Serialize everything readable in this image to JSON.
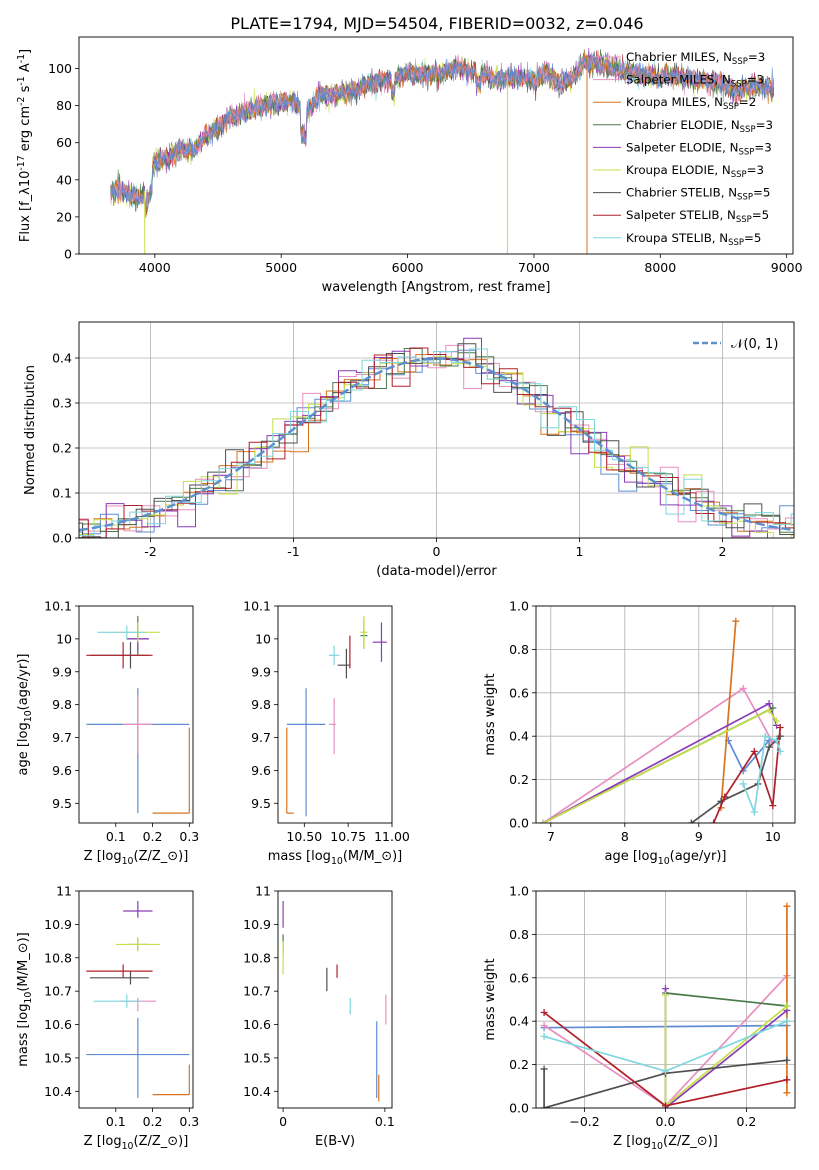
{
  "figure_title": "PLATE=1794, MJD=54504, FIBERID=0032, z=0.046",
  "colors": {
    "cM": "#5f8dd3",
    "sM": "#e88fc0",
    "kM": "#d9731f",
    "cE": "#4a7a4a",
    "sE": "#8a3db5",
    "kE": "#c5e04a",
    "cS": "#4f4f4f",
    "sS": "#b0202a",
    "kS": "#7fd6e0"
  },
  "chart_data": [
    {
      "id": "spectrum",
      "type": "line",
      "xlabel": "wavelength [Angstrom, rest frame]",
      "ylabel": "Flux [f$_\\lambda$10$^{-17}$ erg cm$^{-2}$ s$^{-1}$ A$^{-1}$]",
      "xlim": [
        3400,
        9050
      ],
      "ylim": [
        0,
        117
      ],
      "xticks": [
        4000,
        5000,
        6000,
        7000,
        8000,
        9000
      ],
      "yticks": [
        0,
        20,
        40,
        60,
        80,
        100
      ],
      "legend_position": "upper-right",
      "series": [
        {
          "name": "Chabrier MILES, N",
          "sub": "SSP",
          "suffix": "=3",
          "color": "sM"
        },
        {
          "name": "Salpeter MILES, N",
          "sub": "SSP",
          "suffix": "=3",
          "color": "sM"
        },
        {
          "name": "Kroupa MILES, N",
          "sub": "SSP",
          "suffix": "=2",
          "color": "kM"
        },
        {
          "name": "Chabrier ELODIE, N",
          "sub": "SSP",
          "suffix": "=3",
          "color": "cE"
        },
        {
          "name": "Salpeter ELODIE, N",
          "sub": "SSP",
          "suffix": "=3",
          "color": "sE"
        },
        {
          "name": "Kroupa ELODIE, N",
          "sub": "SSP",
          "suffix": "=3",
          "color": "kE"
        },
        {
          "name": "Chabrier STELIB, N",
          "sub": "SSP",
          "suffix": "=5",
          "color": "cS"
        },
        {
          "name": "Salpeter STELIB, N",
          "sub": "SSP",
          "suffix": "=5",
          "color": "sS"
        },
        {
          "name": "Kroupa STELIB, N",
          "sub": "SSP",
          "suffix": "=5",
          "color": "kS"
        }
      ],
      "spectrum_anchor": {
        "x": [
          3650,
          3700,
          3800,
          3900,
          4000,
          4100,
          4200,
          4300,
          4400,
          4500,
          4600,
          4700,
          4800,
          4900,
          5000,
          5100,
          5200,
          5300,
          5400,
          5500,
          5600,
          5700,
          5800,
          5900,
          6000,
          6100,
          6200,
          6300,
          6400,
          6500,
          6600,
          6700,
          6800,
          6900,
          7000,
          7100,
          7200,
          7300,
          7400,
          7500,
          7600,
          7700,
          7800,
          7900,
          8000,
          8100,
          8200,
          8300,
          8400,
          8500,
          8600,
          8700,
          8800,
          8900
        ],
        "y": [
          33,
          35,
          32,
          30,
          50,
          52,
          57,
          55,
          63,
          68,
          74,
          76,
          79,
          81,
          82,
          82,
          74,
          86,
          85,
          87,
          88,
          92,
          93,
          95,
          98,
          97,
          97,
          98,
          101,
          98,
          98,
          94,
          95,
          95,
          93,
          98,
          92,
          94,
          104,
          103,
          101,
          99,
          98,
          96,
          95,
          96,
          95,
          93,
          93,
          91,
          88,
          90,
          90,
          89
        ]
      },
      "drops": [
        {
          "x": 3920,
          "color": "kE"
        },
        {
          "x": 6790,
          "color": "kE"
        },
        {
          "x": 7420,
          "color": "kM"
        }
      ]
    },
    {
      "id": "residual_hist",
      "type": "histogram",
      "xlabel": "(data-model)/error",
      "ylabel": "Normed distribution",
      "xlim": [
        -2.5,
        2.5
      ],
      "ylim": [
        0,
        0.48
      ],
      "xticks": [
        -2,
        -1,
        0,
        1,
        2
      ],
      "yticks": [
        0.0,
        0.1,
        0.2,
        0.3,
        0.4
      ],
      "grid": true,
      "legend": "𝒩(0, 1)",
      "legend_position": "upper-right",
      "overlay": "normal(0,1) dashed"
    },
    {
      "id": "age_vs_Z",
      "type": "scatter-errorbar",
      "xlabel": "Z [log$_{10}$($Z/Z_\\odot$)]",
      "ylabel": "age  [log$_{10}$($age/yr$)]",
      "xlim": [
        0.0,
        0.31
      ],
      "ylim": [
        9.44,
        10.1
      ],
      "xticks": [
        0.1,
        0.2,
        0.3
      ],
      "yticks": [
        9.5,
        9.6,
        9.7,
        9.8,
        9.9,
        10.0,
        10.1
      ],
      "points": [
        {
          "series": "cM",
          "x": 0.16,
          "y": 9.74,
          "xerr": [
            0.14,
            0.14
          ],
          "yerr": [
            0.27,
            0.11
          ]
        },
        {
          "series": "sM",
          "x": 0.16,
          "y": 9.74,
          "xerr": [
            0.04,
            0.04
          ],
          "yerr": [
            0.09,
            0.09
          ]
        },
        {
          "series": "kM",
          "x": 0.3,
          "y": 9.47,
          "xerr": [
            0.1,
            0.0
          ],
          "yerr": [
            0.0,
            0.26
          ]
        },
        {
          "series": "cE",
          "x": 0.16,
          "y": 10.0,
          "xerr": [
            0.03,
            0.03
          ],
          "yerr": [
            0.05,
            0.07
          ]
        },
        {
          "series": "sE",
          "x": 0.16,
          "y": 10.0,
          "xerr": [
            0.03,
            0.03
          ],
          "yerr": [
            0.04,
            0.05
          ]
        },
        {
          "series": "kE",
          "x": 0.16,
          "y": 10.02,
          "xerr": [
            0.06,
            0.06
          ],
          "yerr": [
            0.03,
            0.03
          ]
        },
        {
          "series": "cS",
          "x": 0.14,
          "y": 9.95,
          "xerr": [
            0.11,
            0.05
          ],
          "yerr": [
            0.04,
            0.04
          ]
        },
        {
          "series": "sS",
          "x": 0.12,
          "y": 9.95,
          "xerr": [
            0.1,
            0.08
          ],
          "yerr": [
            0.04,
            0.04
          ]
        },
        {
          "series": "kS",
          "x": 0.13,
          "y": 10.02,
          "xerr": [
            0.08,
            0.05
          ],
          "yerr": [
            0.02,
            0.02
          ]
        }
      ]
    },
    {
      "id": "age_vs_mass",
      "type": "scatter-errorbar",
      "xlabel": "mass [log$_{10}$($M/M_\\odot$)]",
      "ylabel": "",
      "xlim": [
        10.35,
        11.0
      ],
      "ylim": [
        9.44,
        10.1
      ],
      "xticks": [
        10.5,
        10.75,
        11.0
      ],
      "xticklabels": [
        "10.50",
        "10.75",
        "11.00"
      ],
      "yticks": [
        9.5,
        9.6,
        9.7,
        9.8,
        9.9,
        10.0,
        10.1
      ],
      "points": [
        {
          "series": "cM",
          "x": 10.51,
          "y": 9.74,
          "xerr": [
            0.11,
            0.11
          ],
          "yerr": [
            0.28,
            0.11
          ]
        },
        {
          "series": "sM",
          "x": 10.67,
          "y": 9.74,
          "xerr": [
            0.03,
            0.01
          ],
          "yerr": [
            0.09,
            0.08
          ]
        },
        {
          "series": "kM",
          "x": 10.4,
          "y": 9.47,
          "xerr": [
            0.0,
            0.04
          ],
          "yerr": [
            0.0,
            0.26
          ]
        },
        {
          "series": "cE",
          "x": 10.84,
          "y": 10.01,
          "xerr": [
            0.02,
            0.02
          ],
          "yerr": [
            0.04,
            0.05
          ]
        },
        {
          "series": "sE",
          "x": 10.94,
          "y": 9.99,
          "xerr": [
            0.05,
            0.03
          ],
          "yerr": [
            0.06,
            0.06
          ]
        },
        {
          "series": "kE",
          "x": 10.84,
          "y": 10.02,
          "xerr": [
            0.02,
            0.02
          ],
          "yerr": [
            0.05,
            0.05
          ]
        },
        {
          "series": "cS",
          "x": 10.74,
          "y": 9.92,
          "xerr": [
            0.05,
            0.02
          ],
          "yerr": [
            0.04,
            0.05
          ]
        },
        {
          "series": "sS",
          "x": 10.76,
          "y": 9.96,
          "xerr": [
            0.0,
            0.0
          ],
          "yerr": [
            0.05,
            0.05
          ]
        },
        {
          "series": "kS",
          "x": 10.67,
          "y": 9.95,
          "xerr": [
            0.03,
            0.03
          ],
          "yerr": [
            0.03,
            0.03
          ]
        }
      ]
    },
    {
      "id": "weight_vs_age",
      "type": "line",
      "xlabel": "age  [log$_{10}$($age/yr$)]",
      "ylabel": "mass weight",
      "xlim": [
        6.8,
        10.3
      ],
      "ylim": [
        0,
        1
      ],
      "xticks": [
        7,
        8,
        9,
        10
      ],
      "yticks": [
        0.0,
        0.2,
        0.4,
        0.6,
        0.8,
        1.0
      ],
      "grid": true,
      "series": [
        {
          "series": "cM",
          "x": [
            9.4,
            9.6,
            9.95
          ],
          "y": [
            0.38,
            0.24,
            0.38
          ]
        },
        {
          "series": "sM",
          "x": [
            6.9,
            9.6,
            10.0
          ],
          "y": [
            0.0,
            0.62,
            0.37
          ]
        },
        {
          "series": "kM",
          "x": [
            9.5,
            9.3
          ],
          "y": [
            0.93,
            0.07
          ]
        },
        {
          "series": "cE",
          "x": [
            6.9,
            10.0
          ],
          "y": [
            0.0,
            0.53
          ]
        },
        {
          "series": "sE",
          "x": [
            6.9,
            9.95,
            10.05
          ],
          "y": [
            0.0,
            0.55,
            0.45
          ]
        },
        {
          "series": "kE",
          "x": [
            6.9,
            9.95,
            10.05
          ],
          "y": [
            0.0,
            0.52,
            0.47
          ]
        },
        {
          "series": "cS",
          "x": [
            8.9,
            9.3,
            9.8,
            9.95,
            10.1
          ],
          "y": [
            0.0,
            0.1,
            0.18,
            0.35,
            0.4
          ]
        },
        {
          "series": "sS",
          "x": [
            9.2,
            9.35,
            9.75,
            10.0,
            10.1
          ],
          "y": [
            0.0,
            0.12,
            0.33,
            0.08,
            0.44
          ]
        },
        {
          "series": "kS",
          "x": [
            9.6,
            9.75,
            9.9,
            10.05,
            10.1
          ],
          "y": [
            0.18,
            0.05,
            0.4,
            0.38,
            0.33
          ]
        }
      ]
    },
    {
      "id": "mass_vs_Z",
      "type": "scatter-errorbar",
      "xlabel": "Z [log$_{10}$($Z/Z_\\odot$)]",
      "ylabel": "mass [log$_{10}$($M/M_\\odot$)]",
      "xlim": [
        0.0,
        0.31
      ],
      "ylim": [
        10.35,
        11.0
      ],
      "xticks": [
        0.1,
        0.2,
        0.3
      ],
      "yticks": [
        10.4,
        10.5,
        10.6,
        10.7,
        10.8,
        10.9,
        11.0
      ],
      "points": [
        {
          "series": "cM",
          "x": 0.16,
          "y": 10.51,
          "xerr": [
            0.14,
            0.14
          ],
          "yerr": [
            0.13,
            0.11
          ]
        },
        {
          "series": "sM",
          "x": 0.16,
          "y": 10.67,
          "xerr": [
            0.05,
            0.05
          ],
          "yerr": [
            0.03,
            0.01
          ]
        },
        {
          "series": "kM",
          "x": 0.3,
          "y": 10.39,
          "xerr": [
            0.1,
            0.0
          ],
          "yerr": [
            0.0,
            0.09
          ]
        },
        {
          "series": "cE",
          "x": 0.16,
          "y": 10.84,
          "xerr": [
            0.03,
            0.03
          ],
          "yerr": [
            0.02,
            0.02
          ]
        },
        {
          "series": "sE",
          "x": 0.16,
          "y": 10.94,
          "xerr": [
            0.04,
            0.04
          ],
          "yerr": [
            0.02,
            0.03
          ]
        },
        {
          "series": "kE",
          "x": 0.16,
          "y": 10.84,
          "xerr": [
            0.06,
            0.06
          ],
          "yerr": [
            0.02,
            0.02
          ]
        },
        {
          "series": "cS",
          "x": 0.14,
          "y": 10.74,
          "xerr": [
            0.11,
            0.05
          ],
          "yerr": [
            0.02,
            0.02
          ]
        },
        {
          "series": "sS",
          "x": 0.12,
          "y": 10.76,
          "xerr": [
            0.1,
            0.08
          ],
          "yerr": [
            0.02,
            0.02
          ]
        },
        {
          "series": "kS",
          "x": 0.13,
          "y": 10.67,
          "xerr": [
            0.09,
            0.04
          ],
          "yerr": [
            0.02,
            0.02
          ]
        }
      ]
    },
    {
      "id": "mass_vs_ebv",
      "type": "scatter-errorbar",
      "xlabel": "E(B-V)",
      "ylabel": "",
      "xlim": [
        -0.005,
        0.107
      ],
      "ylim": [
        10.35,
        11.0
      ],
      "xticks": [
        0.0,
        0.1
      ],
      "yticks": [
        10.4,
        10.5,
        10.6,
        10.7,
        10.8,
        10.9,
        11.0
      ],
      "points": [
        {
          "series": "cM",
          "x": 0.092,
          "y": 10.5,
          "xerr": [
            0,
            0
          ],
          "yerr": [
            0.12,
            0.11
          ]
        },
        {
          "series": "sM",
          "x": 0.101,
          "y": 10.66,
          "xerr": [
            0,
            0
          ],
          "yerr": [
            0.06,
            0.03
          ]
        },
        {
          "series": "kM",
          "x": 0.094,
          "y": 10.39,
          "xerr": [
            0,
            0
          ],
          "yerr": [
            0.02,
            0.06
          ]
        },
        {
          "series": "cE",
          "x": 0.0,
          "y": 10.84,
          "xerr": [
            0,
            0
          ],
          "yerr": [
            0.03,
            0.03
          ]
        },
        {
          "series": "sE",
          "x": 0.0,
          "y": 10.93,
          "xerr": [
            0,
            0
          ],
          "yerr": [
            0.04,
            0.04
          ]
        },
        {
          "series": "kE",
          "x": 0.0,
          "y": 10.8,
          "xerr": [
            0,
            0
          ],
          "yerr": [
            0.05,
            0.05
          ]
        },
        {
          "series": "cS",
          "x": 0.043,
          "y": 10.74,
          "xerr": [
            0,
            0
          ],
          "yerr": [
            0.04,
            0.03
          ]
        },
        {
          "series": "sS",
          "x": 0.053,
          "y": 10.76,
          "xerr": [
            0,
            0
          ],
          "yerr": [
            0.02,
            0.02
          ]
        },
        {
          "series": "kS",
          "x": 0.066,
          "y": 10.65,
          "xerr": [
            0,
            0
          ],
          "yerr": [
            0.02,
            0.03
          ]
        }
      ]
    },
    {
      "id": "weight_vs_Z",
      "type": "line",
      "xlabel": "Z [log$_{10}$($Z/Z_\\odot$)]",
      "ylabel": "mass weight",
      "xlim": [
        -0.32,
        0.32
      ],
      "ylim": [
        0,
        1
      ],
      "xticks": [
        -0.2,
        0.0,
        0.2
      ],
      "xticklabels": [
        "−0.2",
        "0.0",
        "0.2"
      ],
      "yticks": [
        0.0,
        0.2,
        0.4,
        0.6,
        0.8,
        1.0
      ],
      "grid": true,
      "series": [
        {
          "series": "cM",
          "x": [
            -0.3,
            0.3
          ],
          "y": [
            0.37,
            0.38
          ]
        },
        {
          "series": "sM",
          "x": [
            -0.3,
            0.0,
            0.3
          ],
          "y": [
            0.38,
            0.01,
            0.61
          ]
        },
        {
          "series": "kM",
          "x": [
            0.3,
            0.3
          ],
          "y": [
            0.93,
            0.07
          ]
        },
        {
          "series": "cE",
          "x": [
            0.0,
            0.3
          ],
          "y": [
            0.53,
            0.47
          ]
        },
        {
          "series": "sE",
          "x": [
            0.0,
            0.0,
            0.3
          ],
          "y": [
            0.55,
            0.0,
            0.45
          ]
        },
        {
          "series": "kE",
          "x": [
            0.0,
            0.0,
            0.3
          ],
          "y": [
            0.52,
            0.01,
            0.47
          ]
        },
        {
          "series": "cS",
          "x": [
            -0.3,
            -0.3,
            0.0,
            0.3
          ],
          "y": [
            0.18,
            0.0,
            0.16,
            0.22
          ]
        },
        {
          "series": "sS",
          "x": [
            -0.3,
            0.0,
            0.3
          ],
          "y": [
            0.44,
            0.01,
            0.13
          ]
        },
        {
          "series": "kS",
          "x": [
            -0.3,
            0.0,
            0.3
          ],
          "y": [
            0.33,
            0.17,
            0.4
          ]
        }
      ]
    }
  ]
}
